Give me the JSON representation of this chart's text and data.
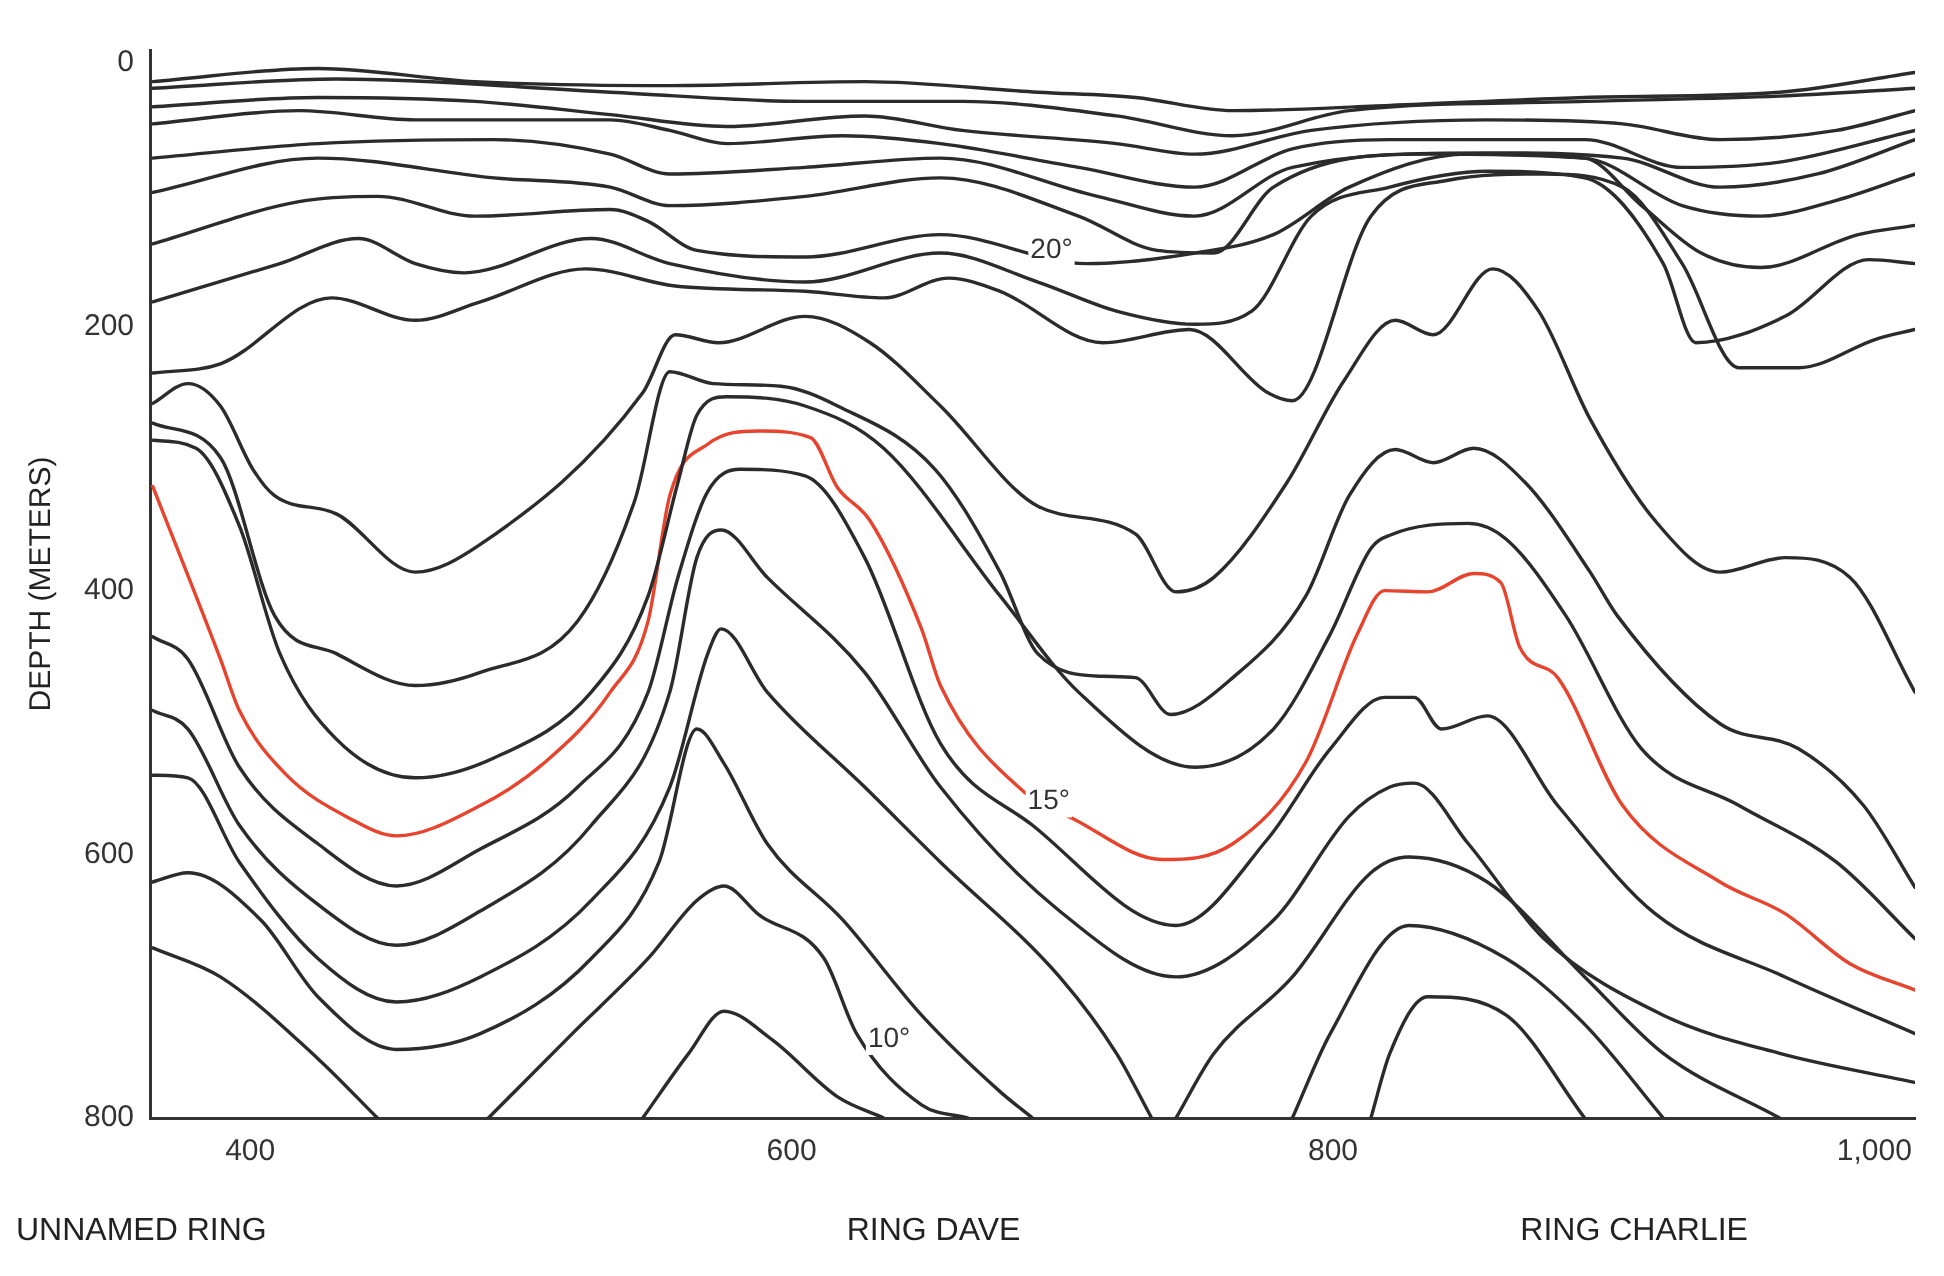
{
  "chart_data": {
    "type": "line",
    "ylabel": "DEPTH (METERS)",
    "xlim": [
      363,
      1015
    ],
    "ylim": [
      800,
      -10
    ],
    "xticks": [
      400,
      600,
      800,
      {
        "value": 1000,
        "label": "1,000"
      }
    ],
    "yticks": [
      0,
      200,
      400,
      600,
      800
    ],
    "grid": false,
    "legend": false,
    "marker": "none",
    "line_style": "solid",
    "annotations": [
      {
        "text": "20°",
        "x": 696,
        "y": 142
      },
      {
        "text": "15°",
        "x": 695,
        "y": 560
      },
      {
        "text": "10°",
        "x": 636,
        "y": 740
      },
      "UNNAMED RING",
      "RING DAVE",
      "RING CHARLIE"
    ],
    "series": [
      {
        "color": "#2b2b2b",
        "x": [
          364,
          425,
          483,
          555,
          627,
          691,
          727,
          763,
          821,
          893,
          965,
          1015
        ],
        "values": [
          14,
          4,
          14,
          17,
          14,
          22,
          26,
          36,
          32,
          26,
          22,
          7
        ]
      },
      {
        "color": "#2b2b2b",
        "x": [
          364,
          432,
          533,
          605,
          663,
          720,
          763,
          806,
          893,
          965,
          1015
        ],
        "values": [
          19,
          12,
          22,
          29,
          29,
          40,
          55,
          36,
          29,
          25,
          19
        ]
      },
      {
        "color": "#2b2b2b",
        "x": [
          364,
          425,
          483,
          533,
          576,
          627,
          663,
          720,
          749,
          792,
          857,
          907,
          943,
          986,
          1015
        ],
        "values": [
          33,
          26,
          29,
          39,
          48,
          40,
          51,
          61,
          69,
          51,
          43,
          46,
          58,
          51,
          36
        ]
      },
      {
        "color": "#2b2b2b",
        "x": [
          364,
          418,
          461,
          533,
          555,
          576,
          619,
          655,
          706,
          749,
          785,
          821,
          893,
          929,
          965,
          1015
        ],
        "values": [
          46,
          36,
          43,
          43,
          51,
          61,
          55,
          61,
          79,
          94,
          65,
          58,
          58,
          79,
          75,
          51
        ]
      },
      {
        "color": "#2b2b2b",
        "x": [
          364,
          425,
          490,
          533,
          555,
          605,
          655,
          713,
          749,
          785,
          857,
          907,
          943,
          979,
          1015
        ],
        "values": [
          72,
          61,
          58,
          69,
          84,
          79,
          72,
          101,
          116,
          79,
          68,
          72,
          94,
          84,
          58
        ]
      },
      {
        "color": "#2b2b2b",
        "x": [
          364,
          425,
          490,
          533,
          555,
          605,
          655,
          706,
          735,
          756,
          778,
          835,
          893,
          929,
          958,
          986,
          1015
        ],
        "values": [
          98,
          72,
          87,
          94,
          108,
          101,
          87,
          116,
          142,
          144,
          94,
          69,
          72,
          108,
          116,
          104,
          84
        ]
      },
      {
        "color": "#2b2b2b",
        "x": [
          364,
          418,
          447,
          483,
          533,
          547,
          565,
          605,
          655,
          709,
          749,
          778,
          806,
          850,
          893,
          914,
          936,
          958,
          994,
          1015
        ],
        "values": [
          137,
          105,
          101,
          116,
          111,
          120,
          142,
          147,
          130,
          152,
          144,
          130,
          94,
          69,
          72,
          108,
          144,
          155,
          130,
          123
        ]
      },
      {
        "color": "#2b2b2b",
        "x": [
          364,
          411,
          440,
          461,
          479,
          526,
          555,
          605,
          655,
          691,
          720,
          749,
          770,
          792,
          821,
          857,
          893,
          922,
          934,
          967,
          998,
          1015
        ],
        "values": [
          181,
          152,
          133,
          152,
          159,
          133,
          152,
          166,
          144,
          166,
          188,
          198,
          188,
          116,
          94,
          82,
          87,
          152,
          212,
          192,
          149,
          152
        ]
      },
      {
        "color": "#2b2b2b",
        "x": [
          364,
          389,
          430,
          461,
          485,
          524,
          557,
          605,
          634,
          658,
          677,
          715,
          747,
          776,
          785,
          814,
          842,
          878,
          907,
          929,
          950,
          972,
          1001,
          1015
        ],
        "values": [
          235,
          228,
          178,
          195,
          181,
          156,
          169,
          173,
          178,
          163,
          173,
          212,
          202,
          250,
          256,
          116,
          89,
          84,
          94,
          152,
          231,
          231,
          209,
          202
        ]
      },
      {
        "color": "#2b2b2b",
        "x": [
          364,
          377,
          389,
          401,
          409,
          432,
          461,
          485,
          545,
          557,
          573,
          605,
          629,
          655,
          691,
          727,
          742,
          756,
          783,
          804,
          823,
          837,
          859,
          876,
          895,
          919,
          943,
          967,
          991,
          1015
        ],
        "values": [
          258,
          243,
          260,
          308,
          328,
          342,
          386,
          365,
          250,
          206,
          212,
          192,
          212,
          260,
          336,
          357,
          401,
          390,
          318,
          241,
          195,
          206,
          156,
          188,
          270,
          347,
          386,
          375,
          390,
          477
        ]
      },
      {
        "color": "#2b2b2b",
        "x": [
          364,
          389,
          409,
          432,
          461,
          485,
          521,
          542,
          555,
          571,
          596,
          617,
          653,
          677,
          691,
          715,
          727,
          740,
          763,
          790,
          806,
          823,
          837,
          852,
          871,
          895,
          905,
          943,
          972,
          996,
          1015
        ],
        "values": [
          273,
          299,
          419,
          448,
          472,
          462,
          423,
          332,
          234,
          243,
          245,
          260,
          308,
          386,
          448,
          465,
          466,
          494,
          466,
          404,
          328,
          293,
          303,
          292,
          318,
          386,
          419,
          501,
          520,
          563,
          625
        ]
      },
      {
        "color": "#2b2b2b",
        "x": [
          364,
          380,
          396,
          411,
          432,
          461,
          490,
          526,
          547,
          558,
          565,
          576,
          605,
          634,
          677,
          706,
          749,
          778,
          799,
          814,
          821,
          850,
          864,
          886,
          914,
          950,
          986,
          1015
        ],
        "values": [
          286,
          292,
          351,
          448,
          513,
          542,
          527,
          477,
          404,
          318,
          267,
          253,
          260,
          292,
          404,
          477,
          534,
          505,
          433,
          368,
          358,
          349,
          361,
          419,
          520,
          563,
          606,
          664
        ]
      },
      {
        "color": "#e8432c",
        "x": [
          364,
          389,
          396,
          413,
          437,
          454,
          485,
          509,
          533,
          547,
          555,
          569,
          588,
          607,
          617,
          629,
          648,
          655,
          686,
          704,
          737,
          763,
          790,
          809,
          819,
          835,
          852,
          862,
          869,
          883,
          907,
          943,
          967,
          991,
          1015
        ],
        "values": [
          321,
          452,
          491,
          539,
          573,
          586,
          563,
          530,
          477,
          423,
          328,
          289,
          279,
          284,
          322,
          347,
          429,
          472,
          553,
          573,
          604,
          592,
          530,
          433,
          400,
          401,
          387,
          394,
          443,
          466,
          563,
          621,
          645,
          683,
          703
        ]
      },
      {
        "color": "#2b2b2b",
        "x": [
          364,
          377,
          396,
          425,
          454,
          485,
          521,
          547,
          558,
          569,
          581,
          605,
          627,
          655,
          689,
          742,
          776,
          799,
          819,
          830,
          840,
          857,
          883,
          919,
          967,
          1015
        ],
        "values": [
          435,
          452,
          534,
          592,
          624,
          596,
          549,
          477,
          390,
          325,
          308,
          313,
          375,
          516,
          578,
          654,
          588,
          520,
          481,
          481,
          505,
          495,
          563,
          645,
          693,
          736
        ]
      },
      {
        "color": "#2b2b2b",
        "x": [
          364,
          377,
          396,
          425,
          454,
          485,
          526,
          555,
          565,
          574,
          591,
          627,
          655,
          699,
          742,
          778,
          806,
          821,
          830,
          850,
          878,
          922,
          965,
          1015
        ],
        "values": [
          491,
          505,
          578,
          638,
          669,
          643,
          578,
          477,
          375,
          354,
          390,
          462,
          549,
          643,
          693,
          650,
          571,
          549,
          546,
          592,
          664,
          722,
          751,
          773
        ]
      },
      {
        "color": "#2b2b2b",
        "x": [
          364,
          377,
          396,
          425,
          454,
          485,
          526,
          555,
          569,
          574,
          591,
          627,
          655,
          699,
          720,
          733
        ],
        "values": [
          540,
          542,
          606,
          679,
          712,
          693,
          635,
          549,
          448,
          429,
          477,
          549,
          606,
          693,
          751,
          800
        ]
      },
      {
        "color": "#2b2b2b",
        "x": [
          364,
          377,
          404,
          425,
          454,
          485,
          526,
          551,
          565,
          575,
          591,
          619,
          648,
          677,
          689
        ],
        "values": [
          621,
          614,
          650,
          708,
          748,
          736,
          679,
          606,
          505,
          531,
          592,
          650,
          722,
          780,
          800
        ]
      },
      {
        "color": "#2b2b2b",
        "x": [
          364,
          389,
          425,
          447
        ],
        "values": [
          671,
          693,
          755,
          800
        ]
      },
      {
        "color": "#2b2b2b",
        "x": [
          488,
          519,
          547,
          565,
          575,
          588,
          612,
          624,
          648,
          665
        ],
        "values": [
          800,
          736,
          679,
          635,
          624,
          646,
          679,
          736,
          790,
          800
        ]
      },
      {
        "color": "#2b2b2b",
        "x": [
          545,
          562,
          575,
          593,
          617,
          634
        ],
        "values": [
          800,
          751,
          719,
          741,
          784,
          800
        ]
      },
      {
        "color": "#2b2b2b",
        "x": [
          742,
          756,
          785,
          814,
          828,
          857,
          893,
          922,
          965
        ],
        "values": [
          800,
          751,
          693,
          614,
          602,
          621,
          693,
          751,
          800
        ]
      },
      {
        "color": "#2b2b2b",
        "x": [
          785,
          799,
          828,
          864,
          893,
          922
        ],
        "values": [
          800,
          736,
          654,
          679,
          729,
          800
        ]
      },
      {
        "color": "#2b2b2b",
        "x": [
          814,
          821,
          835,
          864,
          893
        ],
        "values": [
          800,
          751,
          708,
          722,
          800
        ]
      }
    ]
  }
}
